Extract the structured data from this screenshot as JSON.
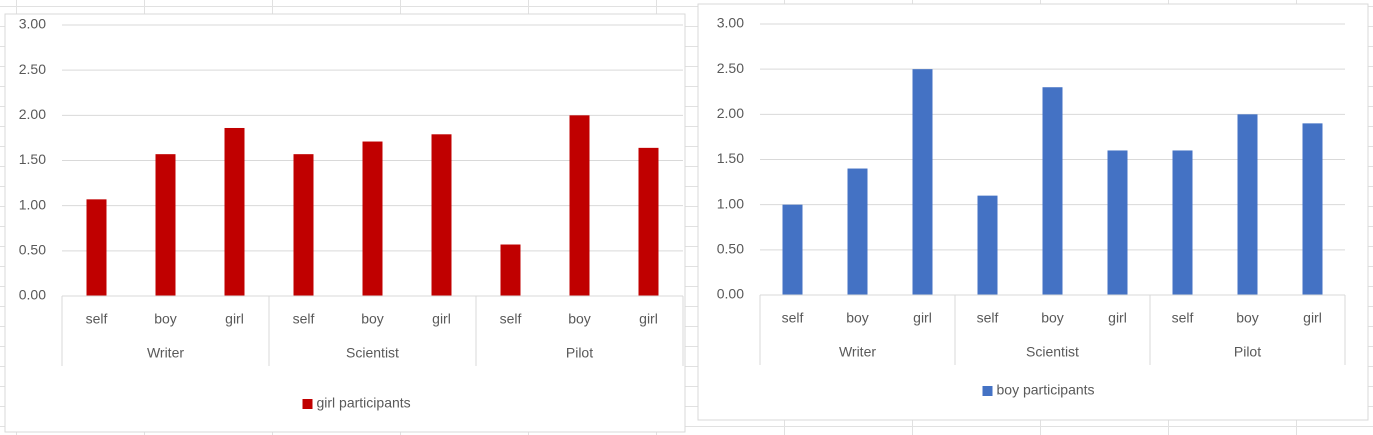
{
  "chart_data": [
    {
      "type": "bar",
      "categories": [
        "self",
        "boy",
        "girl",
        "self",
        "boy",
        "girl",
        "self",
        "boy",
        "girl"
      ],
      "category_groups": [
        "Writer",
        "Scientist",
        "Pilot"
      ],
      "series": [
        {
          "name": "girl participants",
          "color": "#c00000",
          "values": [
            1.07,
            1.57,
            1.86,
            1.57,
            1.71,
            1.79,
            0.57,
            2.0,
            1.64
          ]
        }
      ],
      "ylim": [
        0,
        3
      ],
      "yticks": [
        {
          "value": 0,
          "label": "0.00"
        },
        {
          "value": 0.5,
          "label": "0.50"
        },
        {
          "value": 1,
          "label": "1.00"
        },
        {
          "value": 1.5,
          "label": "1.50"
        },
        {
          "value": 2,
          "label": "2.00"
        },
        {
          "value": 2.5,
          "label": "2.50"
        },
        {
          "value": 3,
          "label": "3.00"
        }
      ],
      "grid": true,
      "legend": "bottom"
    },
    {
      "type": "bar",
      "categories": [
        "self",
        "boy",
        "girl",
        "self",
        "boy",
        "girl",
        "self",
        "boy",
        "girl"
      ],
      "category_groups": [
        "Writer",
        "Scientist",
        "Pilot"
      ],
      "series": [
        {
          "name": "boy participants",
          "color": "#4472c4",
          "values": [
            1.0,
            1.4,
            2.5,
            1.1,
            2.3,
            1.6,
            1.6,
            2.0,
            1.9
          ]
        }
      ],
      "ylim": [
        0,
        3
      ],
      "yticks": [
        {
          "value": 0,
          "label": "0.00"
        },
        {
          "value": 0.5,
          "label": "0.50"
        },
        {
          "value": 1,
          "label": "1.00"
        },
        {
          "value": 1.5,
          "label": "1.50"
        },
        {
          "value": 2,
          "label": "2.00"
        },
        {
          "value": 2.5,
          "label": "2.50"
        },
        {
          "value": 3,
          "label": "3.00"
        }
      ],
      "grid": true,
      "legend": "bottom"
    }
  ]
}
